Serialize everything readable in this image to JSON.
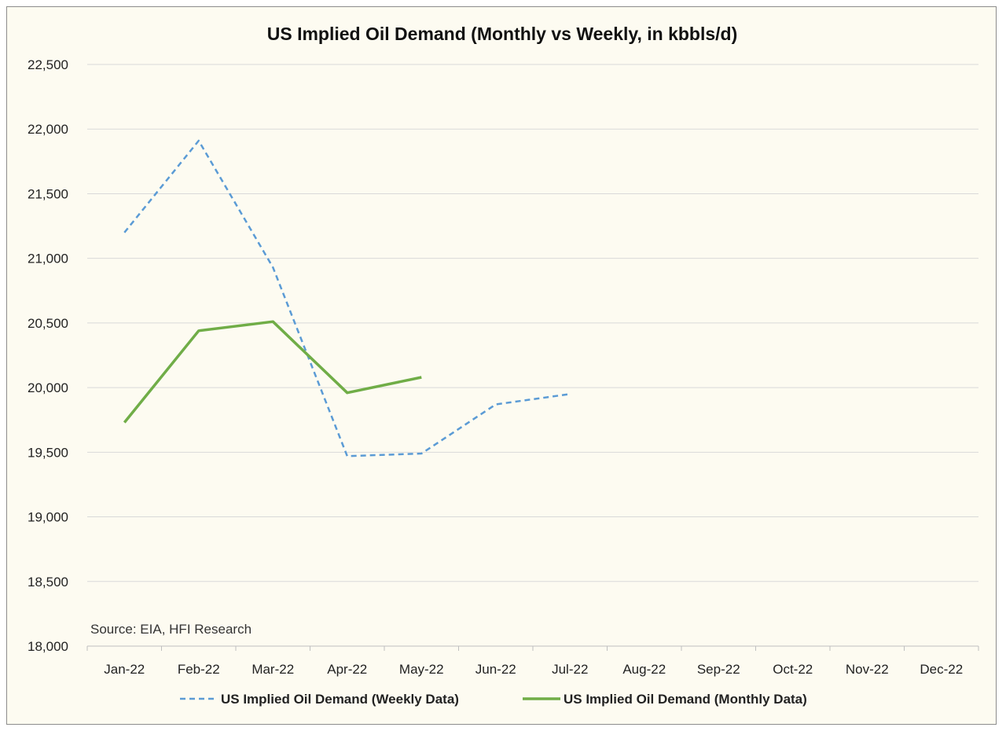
{
  "chart_data": {
    "type": "line",
    "title": "US Implied Oil Demand (Monthly vs Weekly, in kbbls/d)",
    "categories": [
      "Jan-22",
      "Feb-22",
      "Mar-22",
      "Apr-22",
      "May-22",
      "Jun-22",
      "Jul-22",
      "Aug-22",
      "Sep-22",
      "Oct-22",
      "Nov-22",
      "Dec-22"
    ],
    "yticks": [
      "18,000",
      "18,500",
      "19,000",
      "19,500",
      "20,000",
      "20,500",
      "21,000",
      "21,500",
      "22,000",
      "22,500"
    ],
    "ylim": [
      18000,
      22500
    ],
    "grid": "horizontal",
    "legend_position": "bottom",
    "series": [
      {
        "name": "US Implied Oil Demand (Weekly Data)",
        "color": "#5b9bd5",
        "style": "dashed",
        "values": [
          21200,
          21910,
          20930,
          19470,
          19490,
          19870,
          19950,
          null,
          null,
          null,
          null,
          null
        ]
      },
      {
        "name": "US Implied Oil Demand (Monthly Data)",
        "color": "#70ad47",
        "style": "solid",
        "values": [
          19730,
          20440,
          20510,
          19960,
          20080,
          null,
          null,
          null,
          null,
          null,
          null,
          null
        ]
      }
    ],
    "annotation": "Source: EIA, HFI Research"
  }
}
